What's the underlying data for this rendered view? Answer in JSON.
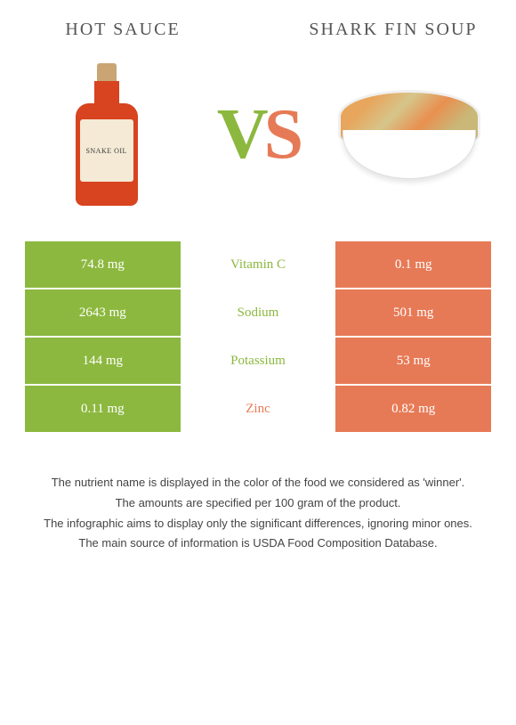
{
  "header": {
    "left_title": "Hot sauce",
    "right_title": "Shark fin soup"
  },
  "vs": {
    "v": "V",
    "s": "S"
  },
  "bottle_label": "SNAKE OIL",
  "colors": {
    "left": "#8cb83f",
    "right": "#e77a56",
    "text": "#555555"
  },
  "rows": [
    {
      "left": "74.8 mg",
      "label": "Vitamin C",
      "right": "0.1 mg",
      "winner": "left"
    },
    {
      "left": "2643 mg",
      "label": "Sodium",
      "right": "501 mg",
      "winner": "left"
    },
    {
      "left": "144 mg",
      "label": "Potassium",
      "right": "53 mg",
      "winner": "left"
    },
    {
      "left": "0.11 mg",
      "label": "Zinc",
      "right": "0.82 mg",
      "winner": "right"
    }
  ],
  "footer": {
    "line1": "The nutrient name is displayed in the color of the food we considered as 'winner'.",
    "line2": "The amounts are specified per 100 gram of the product.",
    "line3": "The infographic aims to display only the significant differences, ignoring minor ones.",
    "line4": "The main source of information is USDA Food Composition Database."
  }
}
